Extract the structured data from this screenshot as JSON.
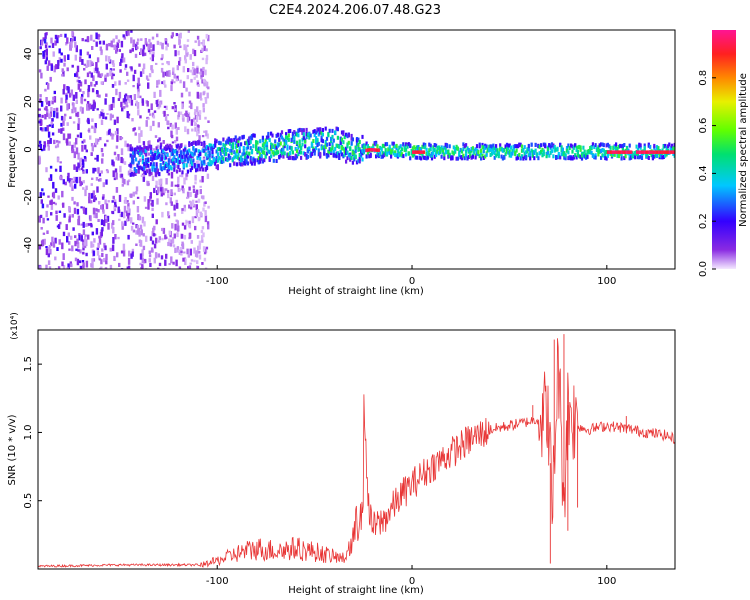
{
  "title": "C2E4.2024.206.07.48.G23",
  "colorbar": {
    "label": "Normalized spectral amplitude",
    "ticks": [
      "0.0",
      "0.2",
      "0.4",
      "0.6",
      "0.8"
    ],
    "tick_values": [
      0.0,
      0.2,
      0.4,
      0.6,
      0.8
    ],
    "range": [
      0,
      1
    ],
    "stops": [
      "#f4e8ff",
      "#8a2be2",
      "#3300ff",
      "#00c8ff",
      "#00e070",
      "#60ff00",
      "#e8f000",
      "#ff8800",
      "#ff2020",
      "#ff1493"
    ]
  },
  "chart_data": [
    {
      "type": "heatmap",
      "title": "C2E4.2024.206.07.48.G23",
      "xlabel": "Height of straight line (km)",
      "ylabel": "Frequency (Hz)",
      "xlim": [
        -192,
        135
      ],
      "ylim": [
        -50,
        50
      ],
      "x_ticks": [
        -100,
        0,
        100
      ],
      "x_tick_labels": [
        "-100",
        "0",
        "100"
      ],
      "y_ticks": [
        -40,
        -20,
        0,
        20,
        40
      ],
      "y_tick_labels": [
        "-40",
        "-20",
        "0",
        "20",
        "40"
      ],
      "ridge": {
        "x": [
          -140,
          -120,
          -100,
          -80,
          -60,
          -40,
          -30,
          -22,
          0,
          20,
          50,
          80,
          100,
          120,
          135
        ],
        "y": [
          -5,
          -4,
          -2,
          0,
          2,
          3,
          -1,
          0,
          -1,
          -1,
          -1,
          -1,
          -1,
          -1,
          -1
        ]
      },
      "noise_region_x": [
        -192,
        -105
      ]
    },
    {
      "type": "line",
      "xlabel": "Height of straight line (km)",
      "ylabel": "SNR (10 * v/v)",
      "y_multiplier": "(x10⁴)",
      "color": "#e83535",
      "xlim": [
        -192,
        135
      ],
      "ylim": [
        0,
        1.75
      ],
      "x_ticks": [
        -100,
        0,
        100
      ],
      "x_tick_labels": [
        "-100",
        "0",
        "100"
      ],
      "y_ticks": [
        0.5,
        1.0,
        1.5
      ],
      "y_tick_labels": [
        "0.5",
        "1.0",
        "1.5"
      ],
      "series": [
        {
          "x": [
            -192,
            -150,
            -110,
            -100,
            -90,
            -80,
            -70,
            -60,
            -50,
            -40,
            -35,
            -30,
            -27,
            -25,
            -22,
            -20,
            -15,
            -10,
            -5,
            0,
            10,
            20,
            30,
            40,
            50,
            60,
            65,
            70,
            72,
            75,
            78,
            80,
            85,
            90,
            100,
            110,
            120,
            130,
            135
          ],
          "y": [
            0.02,
            0.03,
            0.03,
            0.08,
            0.15,
            0.2,
            0.18,
            0.2,
            0.17,
            0.12,
            0.1,
            0.3,
            0.5,
            1.25,
            0.4,
            0.3,
            0.35,
            0.45,
            0.55,
            0.62,
            0.75,
            0.85,
            0.95,
            1.02,
            1.05,
            1.08,
            1.1,
            1.15,
            0.4,
            1.55,
            0.5,
            1.2,
            1.05,
            1.02,
            1.05,
            1.03,
            1.0,
            0.98,
            0.95
          ]
        }
      ]
    }
  ]
}
